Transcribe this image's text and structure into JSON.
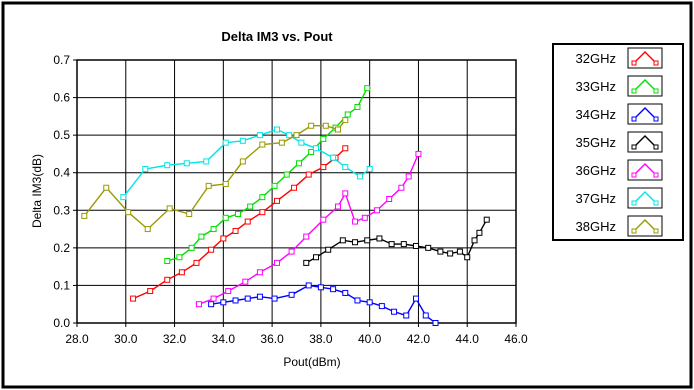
{
  "chart_data": {
    "type": "line",
    "title": "Delta IM3 vs. Pout",
    "xlabel": "Pout(dBm)",
    "ylabel": "Delta IM3(dB)",
    "xlim": [
      28.0,
      46.0
    ],
    "ylim": [
      0.0,
      0.7
    ],
    "x_ticks": [
      "28.0",
      "30.0",
      "32.0",
      "34.0",
      "36.0",
      "38.0",
      "40.0",
      "42.0",
      "44.0",
      "46.0"
    ],
    "y_ticks": [
      "0.0",
      "0.1",
      "0.2",
      "0.3",
      "0.4",
      "0.5",
      "0.6",
      "0.7"
    ],
    "grid": true,
    "legend_position": "right",
    "series": [
      {
        "name": "32GHz",
        "color": "#ff0000",
        "x": [
          30.3,
          31.0,
          31.7,
          32.3,
          32.9,
          33.5,
          34.0,
          34.5,
          35.0,
          35.6,
          36.2,
          36.9,
          37.5,
          38.1,
          38.6,
          39.0
        ],
        "y": [
          0.065,
          0.085,
          0.115,
          0.135,
          0.16,
          0.195,
          0.225,
          0.245,
          0.27,
          0.295,
          0.325,
          0.36,
          0.395,
          0.415,
          0.44,
          0.465
        ]
      },
      {
        "name": "33GHz",
        "color": "#00dd00",
        "x": [
          31.7,
          32.2,
          32.7,
          33.1,
          33.6,
          34.1,
          34.6,
          35.1,
          35.6,
          36.1,
          36.6,
          37.1,
          37.6,
          38.1,
          38.6,
          39.1,
          39.5,
          39.9
        ],
        "y": [
          0.165,
          0.175,
          0.2,
          0.23,
          0.25,
          0.28,
          0.29,
          0.31,
          0.335,
          0.365,
          0.395,
          0.425,
          0.455,
          0.49,
          0.52,
          0.555,
          0.575,
          0.625
        ]
      },
      {
        "name": "34GHz",
        "color": "#0000ff",
        "x": [
          33.5,
          34.0,
          34.5,
          35.0,
          35.5,
          36.1,
          36.8,
          37.5,
          38.0,
          38.5,
          39.0,
          39.5,
          40.0,
          40.5,
          41.0,
          41.5,
          41.9,
          42.3,
          42.7
        ],
        "y": [
          0.05,
          0.055,
          0.06,
          0.065,
          0.07,
          0.065,
          0.075,
          0.1,
          0.095,
          0.09,
          0.08,
          0.06,
          0.055,
          0.045,
          0.03,
          0.02,
          0.065,
          0.02,
          0.0
        ]
      },
      {
        "name": "35GHz",
        "color": "#000000",
        "x": [
          37.4,
          37.8,
          38.3,
          38.9,
          39.4,
          39.9,
          40.4,
          40.9,
          41.4,
          41.9,
          42.4,
          42.9,
          43.3,
          43.7,
          44.0,
          44.3,
          44.5,
          44.8
        ],
        "y": [
          0.16,
          0.175,
          0.195,
          0.22,
          0.215,
          0.22,
          0.225,
          0.21,
          0.21,
          0.205,
          0.2,
          0.19,
          0.185,
          0.19,
          0.175,
          0.22,
          0.24,
          0.275
        ]
      },
      {
        "name": "36GHz",
        "color": "#ff00ff",
        "x": [
          33.0,
          33.6,
          34.2,
          34.9,
          35.5,
          36.2,
          36.8,
          37.4,
          38.1,
          38.7,
          39.0,
          39.4,
          39.8,
          40.3,
          40.8,
          41.3,
          41.6,
          42.0
        ],
        "y": [
          0.05,
          0.065,
          0.085,
          0.11,
          0.135,
          0.16,
          0.19,
          0.23,
          0.275,
          0.31,
          0.345,
          0.27,
          0.28,
          0.3,
          0.33,
          0.36,
          0.39,
          0.45
        ]
      },
      {
        "name": "37GHz",
        "color": "#00e5e5",
        "x": [
          29.9,
          30.8,
          31.7,
          32.5,
          33.3,
          34.1,
          34.8,
          35.5,
          36.2,
          36.7,
          37.2,
          37.8,
          38.5,
          39.0,
          39.6,
          40.0
        ],
        "y": [
          0.335,
          0.41,
          0.42,
          0.425,
          0.43,
          0.48,
          0.485,
          0.5,
          0.515,
          0.5,
          0.48,
          0.465,
          0.44,
          0.415,
          0.39,
          0.41
        ]
      },
      {
        "name": "38GHz",
        "color": "#999900",
        "x": [
          28.3,
          29.2,
          30.1,
          30.9,
          31.8,
          32.6,
          33.4,
          34.1,
          34.8,
          35.6,
          36.4,
          37.0,
          37.6,
          38.2,
          38.7,
          39.0
        ],
        "y": [
          0.285,
          0.36,
          0.295,
          0.25,
          0.305,
          0.29,
          0.365,
          0.37,
          0.43,
          0.475,
          0.48,
          0.5,
          0.525,
          0.525,
          0.515,
          0.54
        ]
      }
    ]
  }
}
